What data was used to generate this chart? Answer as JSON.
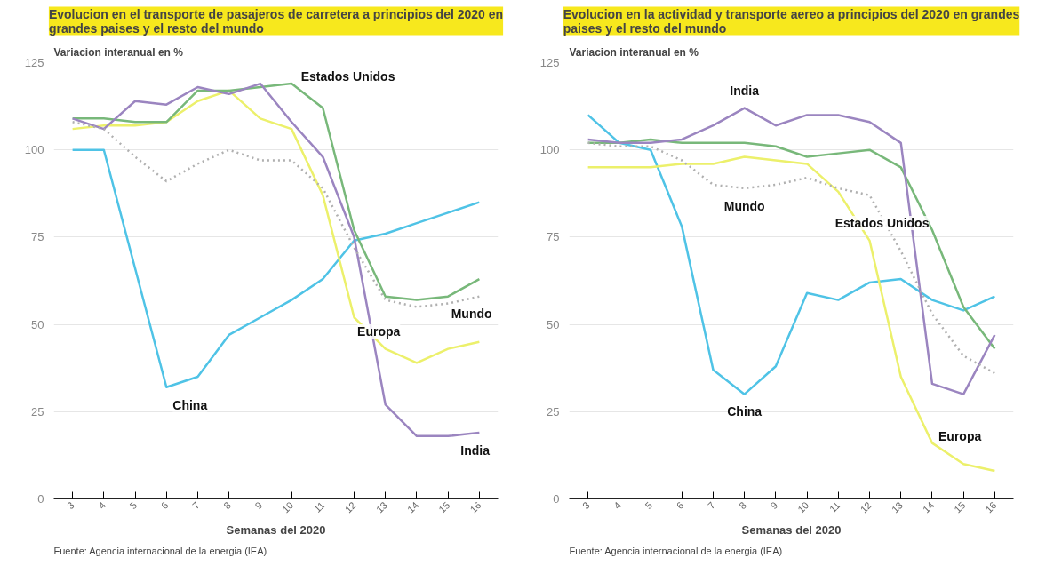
{
  "chart_data": [
    {
      "type": "line",
      "title": "Evolucion en el transporte de pasajeros de carretera a principios del 2020 en grandes paises y el resto del mundo",
      "ylabel": "Variacion interanual en %",
      "xlabel": "Semanas del 2020",
      "annotations": [
        "Fuente: Agencia internacional de la energia (IEA)"
      ],
      "categories": [
        "3",
        "4",
        "5",
        "6",
        "7",
        "8",
        "9",
        "10",
        "11",
        "12",
        "13",
        "14",
        "15",
        "16"
      ],
      "ylim": [
        0,
        125
      ],
      "yticks": [
        0,
        25,
        50,
        75,
        100,
        125
      ],
      "grid": "y",
      "series": [
        {
          "name": "China",
          "color": "#4fc3e6",
          "line_style": "solid",
          "values": [
            100,
            100,
            66,
            32,
            35,
            47,
            52,
            57,
            63,
            74,
            76,
            79,
            82,
            85
          ]
        },
        {
          "name": "Europa",
          "color": "#ecf06b",
          "line_style": "solid",
          "values": [
            106,
            107,
            107,
            108,
            114,
            117,
            109,
            106,
            87,
            52,
            43,
            39,
            43,
            45
          ]
        },
        {
          "name": "Estados Unidos",
          "color": "#78b87a",
          "line_style": "solid",
          "values": [
            109,
            109,
            108,
            108,
            117,
            117,
            118,
            119,
            112,
            77,
            58,
            57,
            58,
            63
          ]
        },
        {
          "name": "India",
          "color": "#9b85c0",
          "line_style": "solid",
          "values": [
            109,
            106,
            114,
            113,
            118,
            116,
            119,
            108,
            98,
            75,
            27,
            18,
            18,
            19
          ]
        },
        {
          "name": "Mundo",
          "color": "#b0b0b0",
          "line_style": "dotted",
          "values": [
            108,
            106,
            98,
            91,
            96,
            100,
            97,
            97,
            89,
            72,
            57,
            55,
            56,
            58
          ]
        }
      ]
    },
    {
      "type": "line",
      "title": "Evolucion en la actividad y transporte aereo a principios del 2020 en grandes paises y el resto del mundo",
      "ylabel": "Variacion interanual en %",
      "xlabel": "Semanas del 2020",
      "annotations": [
        "Fuente: Agencia internacional de la energia (IEA)"
      ],
      "categories": [
        "3",
        "4",
        "5",
        "6",
        "7",
        "8",
        "9",
        "10",
        "11",
        "12",
        "13",
        "14",
        "15",
        "16"
      ],
      "ylim": [
        0,
        125
      ],
      "yticks": [
        0,
        25,
        50,
        75,
        100,
        125
      ],
      "grid": "y",
      "series": [
        {
          "name": "China",
          "color": "#4fc3e6",
          "line_style": "solid",
          "values": [
            110,
            102,
            100,
            78,
            37,
            30,
            38,
            59,
            57,
            62,
            63,
            57,
            54,
            58
          ]
        },
        {
          "name": "Europa",
          "color": "#ecf06b",
          "line_style": "solid",
          "values": [
            95,
            95,
            95,
            96,
            96,
            98,
            97,
            96,
            88,
            74,
            35,
            16,
            10,
            8
          ]
        },
        {
          "name": "Estados Unidos",
          "color": "#78b87a",
          "line_style": "solid",
          "values": [
            102,
            102,
            103,
            102,
            102,
            102,
            101,
            98,
            99,
            100,
            95,
            77,
            55,
            43
          ]
        },
        {
          "name": "India",
          "color": "#9b85c0",
          "line_style": "solid",
          "values": [
            103,
            102,
            102,
            103,
            107,
            112,
            107,
            110,
            110,
            108,
            102,
            33,
            30,
            47
          ]
        },
        {
          "name": "Mundo",
          "color": "#b0b0b0",
          "line_style": "dotted",
          "values": [
            102,
            101,
            101,
            97,
            90,
            89,
            90,
            92,
            89,
            87,
            71,
            53,
            41,
            36
          ]
        }
      ]
    }
  ]
}
